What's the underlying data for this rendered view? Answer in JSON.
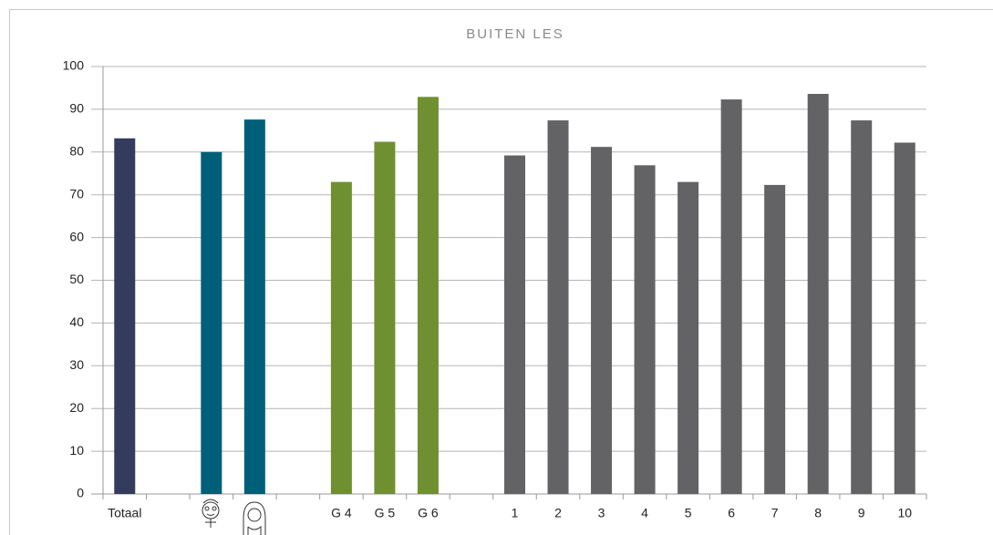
{
  "chart_data": {
    "type": "bar",
    "title": "BUITEN LES",
    "categories": [
      "Totaal",
      null,
      null,
      null,
      null,
      "G 4",
      "G 5",
      "G 6",
      null,
      "1",
      "2",
      "3",
      "4",
      "5",
      "6",
      "7",
      "8",
      "9",
      "10"
    ],
    "values": [
      83.2,
      null,
      80,
      87.6,
      null,
      73,
      82.4,
      92.9,
      null,
      79.2,
      87.4,
      81.2,
      76.9,
      73,
      92.3,
      72.3,
      93.6,
      87.4,
      82.2
    ],
    "colors": [
      "#333c5c",
      null,
      "#005f78",
      "#005f78",
      null,
      "#6f9030",
      "#6f9030",
      "#6f9030",
      null,
      "#636264",
      "#636264",
      "#636264",
      "#636264",
      "#636264",
      "#636264",
      "#636264",
      "#636264",
      "#636264",
      "#636264"
    ],
    "ylim": [
      0,
      100
    ],
    "yticks": [
      0,
      10,
      20,
      30,
      40,
      50,
      60,
      70,
      80,
      90,
      100
    ],
    "grid": true
  }
}
